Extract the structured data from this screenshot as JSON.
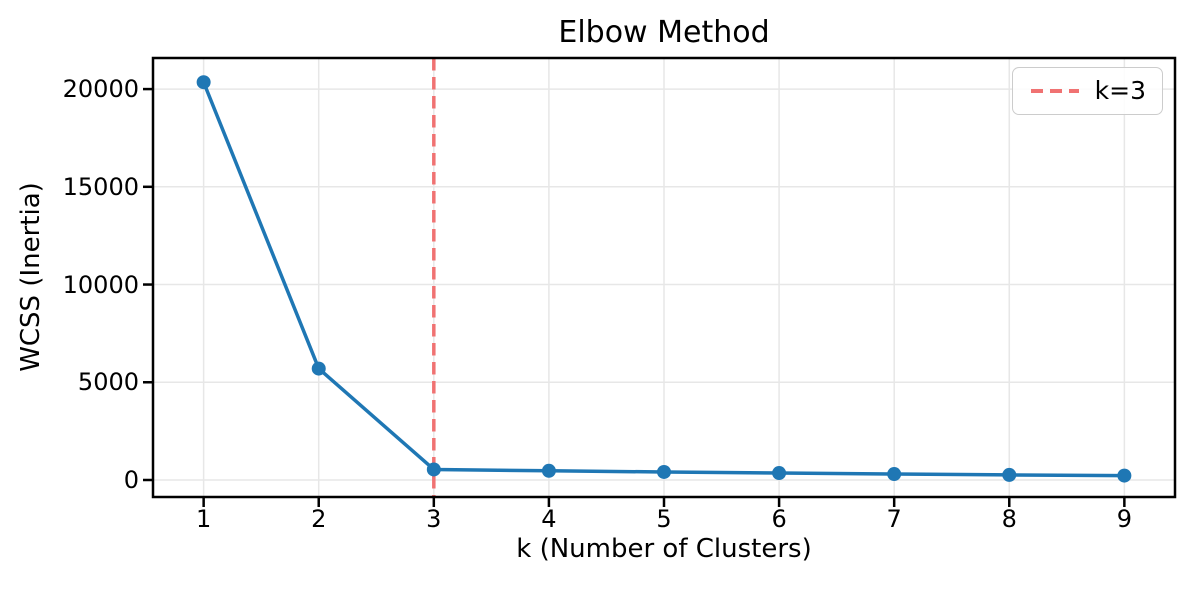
{
  "title": "Elbow Method",
  "xlabel": "k (Number of Clusters)",
  "ylabel": "WCSS (Inertia)",
  "legend": {
    "entries": [
      {
        "label": "k=3",
        "style": "dashed-line",
        "color": "#f07272"
      }
    ]
  },
  "colors": {
    "line": "#1f77b4",
    "marker": "#1f77b4",
    "vline": "#f07272",
    "grid": "#e7e7e7",
    "spine": "#000000",
    "background": "#ffffff",
    "legend_border": "#cccccc"
  },
  "chart_data": {
    "type": "line",
    "title": "Elbow Method",
    "xlabel": "k (Number of Clusters)",
    "ylabel": "WCSS (Inertia)",
    "series": [
      {
        "name": "WCSS",
        "x": [
          1,
          2,
          3,
          4,
          5,
          6,
          7,
          8,
          9
        ],
        "values": [
          20350,
          5700,
          540,
          470,
          410,
          355,
          305,
          260,
          225
        ],
        "color": "#1f77b4",
        "marker": "circle",
        "linestyle": "solid"
      }
    ],
    "vline": {
      "x": 3,
      "color": "#f07272",
      "linestyle": "dashed",
      "label": "k=3"
    },
    "xticks": [
      1,
      2,
      3,
      4,
      5,
      6,
      7,
      8,
      9
    ],
    "yticks": [
      0,
      5000,
      10000,
      15000,
      20000
    ],
    "xlim": [
      0.56,
      9.44
    ],
    "ylim": [
      -870,
      21590
    ],
    "grid": true,
    "legend_position": "upper right"
  }
}
